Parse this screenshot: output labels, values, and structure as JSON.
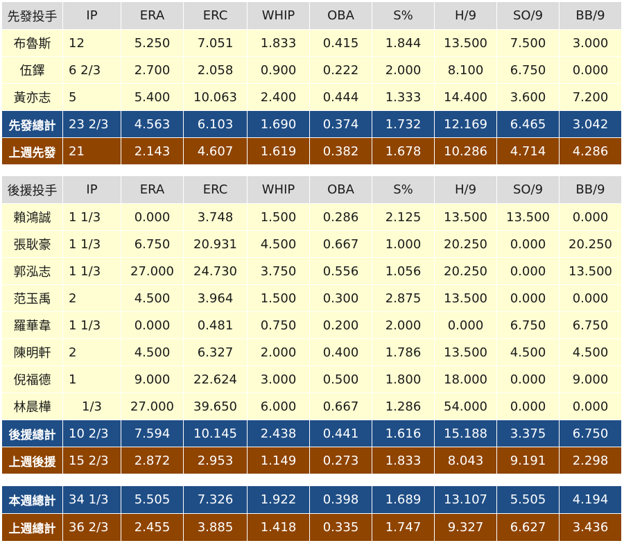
{
  "columns": [
    "IP",
    "ERA",
    "ERC",
    "WHIP",
    "OBA",
    "S%",
    "H/9",
    "SO/9",
    "BB/9"
  ],
  "starters": {
    "header": "先發投手",
    "rows": [
      [
        "布魯斯",
        "12",
        "5.250",
        "7.051",
        "1.833",
        "0.415",
        "1.844",
        "13.500",
        "7.500",
        "3.000"
      ],
      [
        "伍鐸",
        "6 2/3",
        "2.700",
        "2.058",
        "0.900",
        "0.222",
        "2.000",
        "8.100",
        "6.750",
        "0.000"
      ],
      [
        "黃亦志",
        "5",
        "5.400",
        "10.063",
        "2.400",
        "0.444",
        "1.333",
        "14.400",
        "3.600",
        "7.200"
      ]
    ],
    "total": [
      "先發總計",
      "23 2/3",
      "4.563",
      "6.103",
      "1.690",
      "0.374",
      "1.732",
      "12.169",
      "6.465",
      "3.042"
    ],
    "last_week": [
      "上週先發",
      "21",
      "2.143",
      "4.607",
      "1.619",
      "0.382",
      "1.678",
      "10.286",
      "4.714",
      "4.286"
    ]
  },
  "relievers": {
    "header": "後援投手",
    "rows": [
      [
        "賴鴻誠",
        "1 1/3",
        "0.000",
        "3.748",
        "1.500",
        "0.286",
        "2.125",
        "13.500",
        "13.500",
        "0.000"
      ],
      [
        "張耿豪",
        "1 1/3",
        "6.750",
        "20.931",
        "4.500",
        "0.667",
        "1.000",
        "20.250",
        "0.000",
        "20.250"
      ],
      [
        "郭泓志",
        "1 1/3",
        "27.000",
        "24.730",
        "3.750",
        "0.556",
        "1.056",
        "20.250",
        "0.000",
        "13.500"
      ],
      [
        "范玉禹",
        "2",
        "4.500",
        "3.964",
        "1.500",
        "0.300",
        "2.875",
        "13.500",
        "0.000",
        "0.000"
      ],
      [
        "羅華韋",
        "1 1/3",
        "0.000",
        "0.481",
        "0.750",
        "0.200",
        "2.000",
        "0.000",
        "6.750",
        "6.750"
      ],
      [
        "陳明軒",
        "2",
        "4.500",
        "6.327",
        "2.000",
        "0.400",
        "1.786",
        "13.500",
        "4.500",
        "4.500"
      ],
      [
        "倪福德",
        "1",
        "9.000",
        "22.624",
        "3.000",
        "0.500",
        "1.800",
        "18.000",
        "0.000",
        "9.000"
      ],
      [
        "林晨樺",
        "1/3",
        "27.000",
        "39.650",
        "6.000",
        "0.667",
        "1.286",
        "54.000",
        "0.000",
        "0.000"
      ]
    ],
    "total": [
      "後援總計",
      "10 2/3",
      "7.594",
      "10.145",
      "2.438",
      "0.441",
      "1.616",
      "15.188",
      "3.375",
      "6.750"
    ],
    "last_week": [
      "上週後援",
      "15 2/3",
      "2.872",
      "2.953",
      "1.149",
      "0.273",
      "1.833",
      "8.043",
      "9.191",
      "2.298"
    ]
  },
  "totals": {
    "this_week": [
      "本週總計",
      "34 1/3",
      "5.505",
      "7.326",
      "1.922",
      "0.398",
      "1.689",
      "13.107",
      "5.505",
      "4.194"
    ],
    "last_week": [
      "上週總計",
      "36 2/3",
      "2.455",
      "3.885",
      "1.418",
      "0.335",
      "1.747",
      "9.327",
      "6.627",
      "3.436"
    ]
  },
  "colors": {
    "header_bg": "#dcdcdc",
    "row_bg": "#fefed2",
    "total_bg": "#1f4e86",
    "last_week_bg": "#8f4400"
  }
}
